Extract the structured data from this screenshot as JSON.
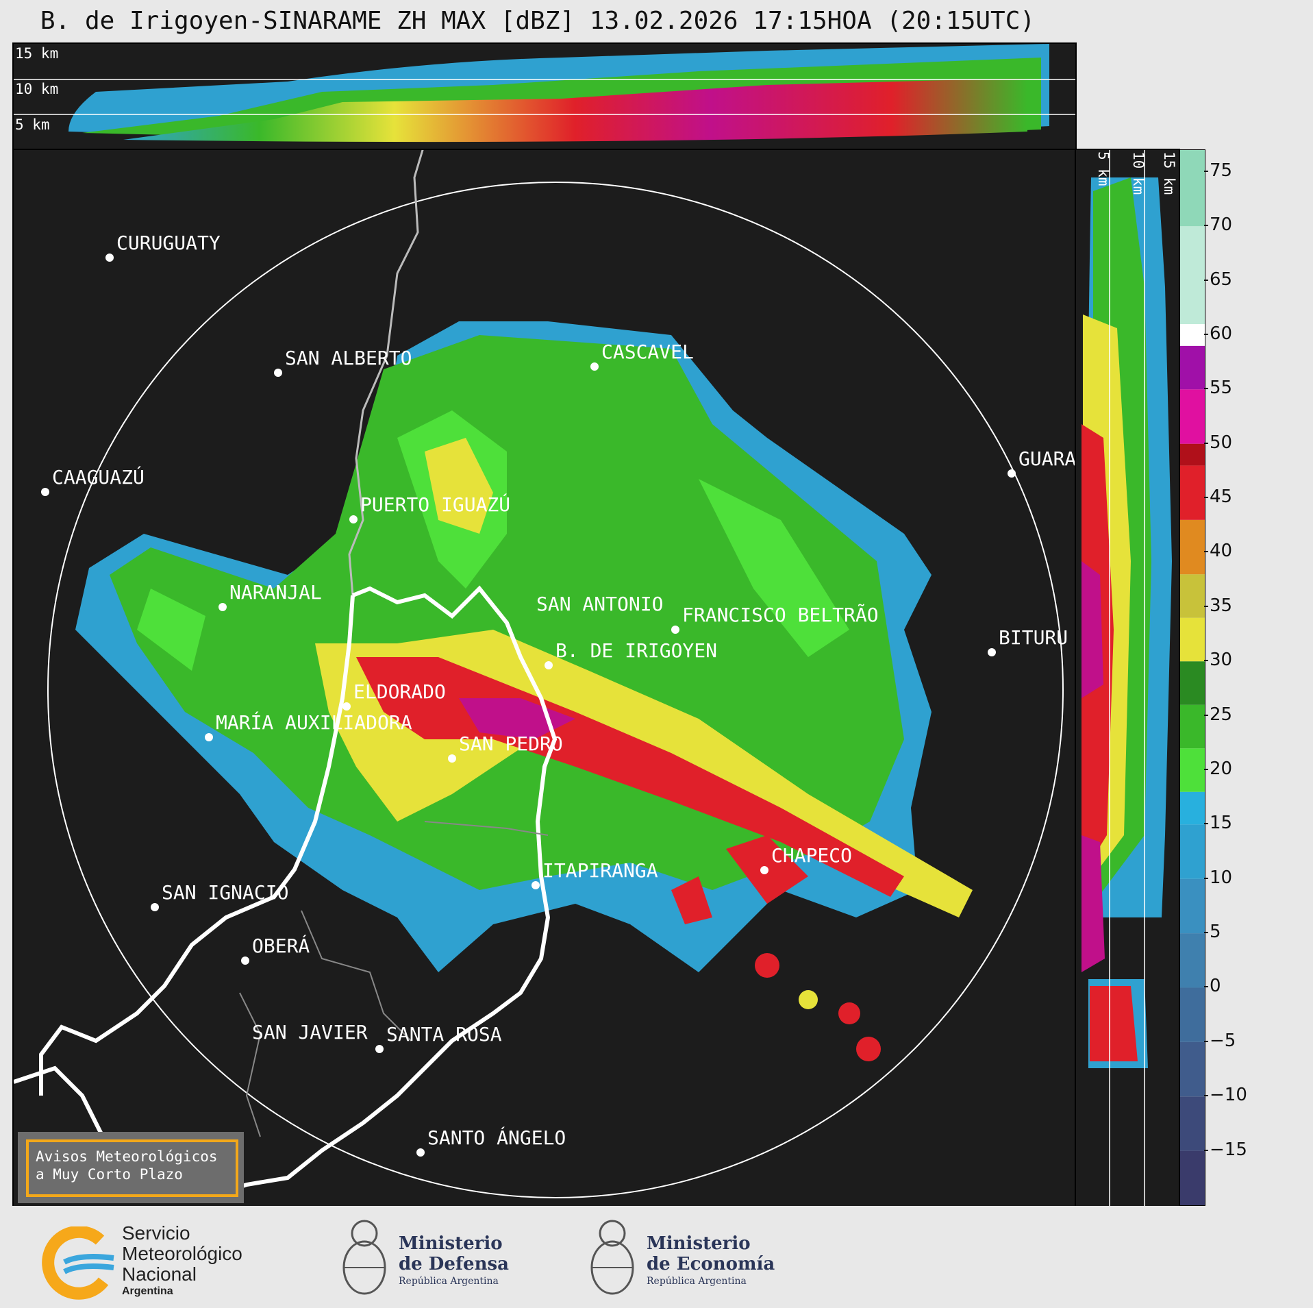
{
  "title": "B. de Irigoyen-SINARAME ZH MAX [dBZ] 13.02.2026 17:15HOA (20:15UTC)",
  "top_panel": {
    "height_labels": [
      "15 km",
      "10 km",
      "5 km"
    ]
  },
  "side_panel": {
    "height_labels": [
      "5 km",
      "10 km",
      "15 km"
    ]
  },
  "colorbar": {
    "unit": "dBZ",
    "ticks": [
      "75",
      "70",
      "65",
      "60",
      "55",
      "50",
      "45",
      "40",
      "35",
      "30",
      "25",
      "20",
      "15",
      "10",
      "5",
      "0",
      "−5",
      "−10",
      "−15"
    ],
    "scale": [
      {
        "from": -20,
        "to": -15,
        "color": "#3a3b6b"
      },
      {
        "from": -15,
        "to": -10,
        "color": "#3d4a7a"
      },
      {
        "from": -10,
        "to": -5,
        "color": "#405c8c"
      },
      {
        "from": -5,
        "to": 0,
        "color": "#3f6d9c"
      },
      {
        "from": 0,
        "to": 5,
        "color": "#3f80ae"
      },
      {
        "from": 5,
        "to": 10,
        "color": "#3a90c0"
      },
      {
        "from": 10,
        "to": 15,
        "color": "#2fa1d0"
      },
      {
        "from": 15,
        "to": 18,
        "color": "#28b0de"
      },
      {
        "from": 18,
        "to": 22,
        "color": "#4ee03a"
      },
      {
        "from": 22,
        "to": 26,
        "color": "#3ab82a"
      },
      {
        "from": 26,
        "to": 30,
        "color": "#2a8a22"
      },
      {
        "from": 30,
        "to": 34,
        "color": "#e6e23a"
      },
      {
        "from": 34,
        "to": 38,
        "color": "#c8c23a"
      },
      {
        "from": 38,
        "to": 43,
        "color": "#e08a20"
      },
      {
        "from": 43,
        "to": 48,
        "color": "#e0202a"
      },
      {
        "from": 48,
        "to": 50,
        "color": "#b0101a"
      },
      {
        "from": 50,
        "to": 55,
        "color": "#e010a0"
      },
      {
        "from": 55,
        "to": 59,
        "color": "#a010a8"
      },
      {
        "from": 59,
        "to": 61,
        "color": "#ffffff"
      },
      {
        "from": 61,
        "to": 70,
        "color": "#bfead8"
      },
      {
        "from": 70,
        "to": 77,
        "color": "#8fd8b8"
      }
    ]
  },
  "cities": [
    {
      "name": "CURUGUATY"
    },
    {
      "name": "SAN ALBERTO"
    },
    {
      "name": "CASCAVEL"
    },
    {
      "name": "CAAGUAZÚ"
    },
    {
      "name": "GUARA"
    },
    {
      "name": "PUERTO IGUAZÚ"
    },
    {
      "name": "NARANJAL"
    },
    {
      "name": "SAN ANTONIO"
    },
    {
      "name": "FRANCISCO BELTRÃO"
    },
    {
      "name": "BITURU"
    },
    {
      "name": "B. DE IRIGOYEN"
    },
    {
      "name": "ELDORADO"
    },
    {
      "name": "MARÍA AUXILIADORA"
    },
    {
      "name": "SAN PEDRO"
    },
    {
      "name": "CHAPECO"
    },
    {
      "name": "ITAPIRANGA"
    },
    {
      "name": "SAN IGNACIO"
    },
    {
      "name": "OBERÁ"
    },
    {
      "name": "SAN JAVIER"
    },
    {
      "name": "SANTA ROSA"
    },
    {
      "name": "SANTO ÁNGELO"
    }
  ],
  "warning_box": {
    "line1": "Avisos Meteorológicos",
    "line2": "a Muy Corto Plazo"
  },
  "footer": {
    "smn": {
      "line1": "Servicio",
      "line2": "Meteorológico",
      "line3": "Nacional",
      "line4": "Argentina"
    },
    "defensa": {
      "line1": "Ministerio",
      "line2": "de Defensa",
      "line3": "República Argentina"
    },
    "economia": {
      "line1": "Ministerio",
      "line2": "de Economía",
      "line3": "República Argentina"
    }
  }
}
